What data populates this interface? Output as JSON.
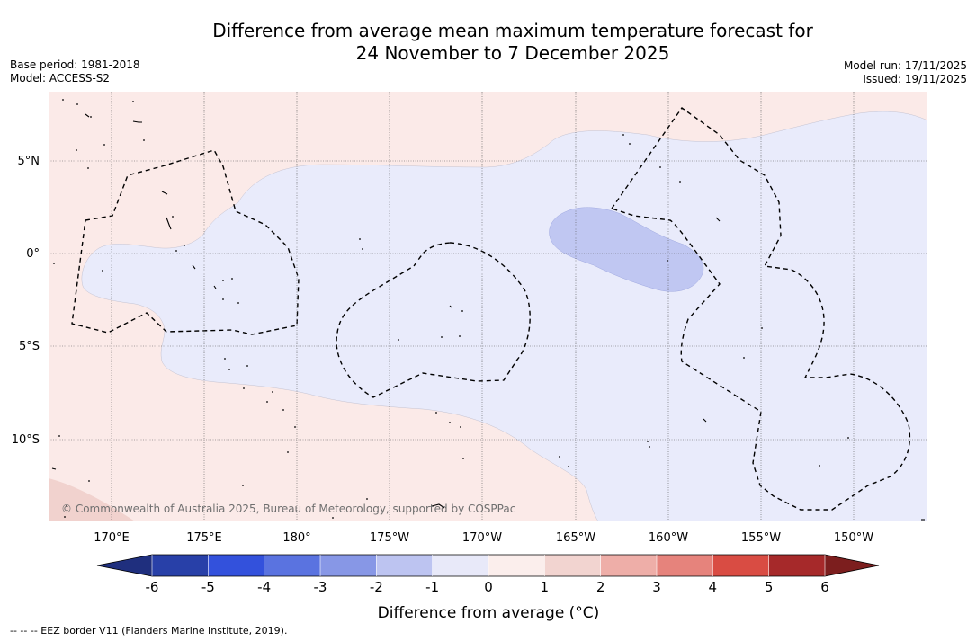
{
  "title": {
    "line1": "Difference from average mean maximum temperature forecast for",
    "line2": "24 November to 7 December 2025"
  },
  "meta_left": {
    "base_period": "Base period: 1981-2018",
    "model": "Model: ACCESS-S2"
  },
  "meta_right": {
    "model_run": "Model run: 17/11/2025",
    "issued": "Issued: 19/11/2025"
  },
  "map": {
    "lat_labels": [
      "5°N",
      "0°",
      "5°S",
      "10°S"
    ],
    "lon_labels": [
      "170°E",
      "175°E",
      "180°",
      "175°W",
      "170°W",
      "165°W",
      "160°W",
      "155°W",
      "150°W"
    ],
    "copyright": "© Commonwealth of Australia 2025, Bureau of Meteorology, supported by COSPPac",
    "category_colors": {
      "minus_1_to_0": "#e9ebfb",
      "minus_2_to_minus_1": "#c0c7f2",
      "0_to_1": "#fbeae8",
      "1_to_2": "#f1d2ce"
    }
  },
  "colorbar": {
    "ticks": [
      "-6",
      "-5",
      "-4",
      "-3",
      "-2",
      "-1",
      "0",
      "1",
      "2",
      "3",
      "4",
      "5",
      "6"
    ],
    "colors": [
      "#2840a8",
      "#3351dc",
      "#5a73e0",
      "#8797e6",
      "#bdc4f1",
      "#e8e9f9",
      "#fbeeec",
      "#f2d4d0",
      "#eeaea8",
      "#e6837c",
      "#d94c43",
      "#a6292a"
    ],
    "under_color": "#1f2f7e",
    "over_color": "#7c1e1e",
    "label": "Difference from average (°C)"
  },
  "legend": {
    "eez_text": "--  --  -- EEZ border V11 (Flanders Marine Institute, 2019)."
  }
}
